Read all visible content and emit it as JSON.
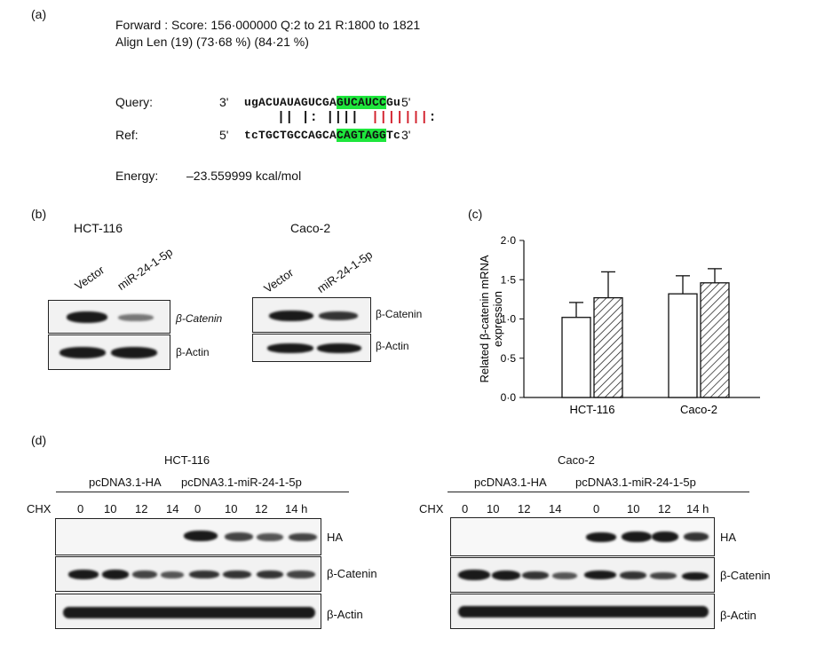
{
  "panel_labels": {
    "a": "(a)",
    "b": "(b)",
    "c": "(c)",
    "d": "(d)"
  },
  "panel_a": {
    "forward_line": "Forward : Score: 156·000000 Q:2 to 21 R:1800 to 1821",
    "align_line": "Align Len (19) (73·68 %) (84·21 %)",
    "query_label": "Query:",
    "query_end5": "3'",
    "query_pre": "ugACUAUAGUCGA",
    "query_hl": "GUCAUCC",
    "query_post": "Gu",
    "query_end3": "5'",
    "pair_black": "|| |: ||||",
    "pair_red": "|||||||",
    "pair_colon": ":",
    "ref_label": "Ref:",
    "ref_end5": "5'",
    "ref_pre": "tcTGCTGCCAGCA",
    "ref_hl": "CAGTAGG",
    "ref_post": "Tc",
    "ref_end3": "3'",
    "energy_label": "Energy:",
    "energy_value": "–23.559999 kcal/mol"
  },
  "panel_b": {
    "left_cell": "HCT-116",
    "right_cell": "Caco-2",
    "lane1": "Vector",
    "lane2": "miR-24-1-5p",
    "row1": "β-Catenin",
    "row2": "β-Actin"
  },
  "panel_d": {
    "left_title": "HCT-116",
    "right_title": "Caco-2",
    "group1": "pcDNA3.1-HA",
    "group2": "pcDNA3.1-miR-24-1-5p",
    "chx": "CHX",
    "times": [
      "0",
      "10",
      "12",
      "14",
      "0",
      "10",
      "12",
      "14 h"
    ],
    "row1": "HA",
    "row2": "β-Catenin",
    "row3": "β-Actin"
  },
  "chart_data": {
    "type": "bar",
    "categories": [
      "HCT-116",
      "Caco-2"
    ],
    "series": [
      {
        "values": [
          1.02,
          1.32
        ],
        "errors": [
          0.19,
          0.23
        ],
        "fill": "white"
      },
      {
        "values": [
          1.27,
          1.46
        ],
        "errors": [
          0.33,
          0.18
        ],
        "fill": "hatched"
      }
    ],
    "ylabel": "Related β-catenin mRNA expression",
    "ylim": [
      0,
      2
    ],
    "yticks": [
      "0·0",
      "0·5",
      "1·0",
      "1·5",
      "2·0"
    ],
    "yvalues": [
      0,
      0.5,
      1.0,
      1.5,
      2.0
    ]
  }
}
